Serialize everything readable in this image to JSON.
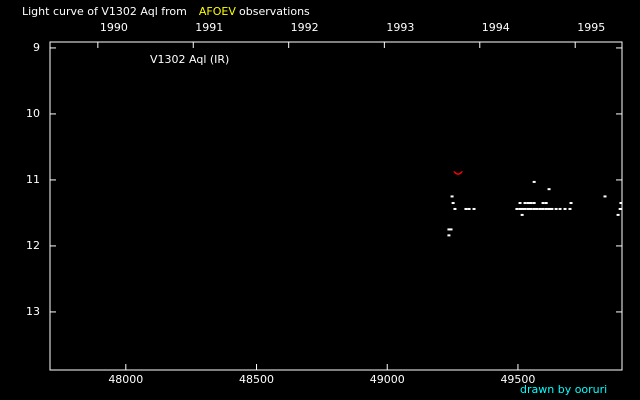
{
  "chart_data": {
    "type": "scatter",
    "title": {
      "before": "Light curve of V1302 Aql from",
      "source": "AFOEV",
      "after": "observations"
    },
    "annotation": "V1302 Aql (IR)",
    "credit": "drawn by ooruri",
    "xlim": [
      47710,
      49898
    ],
    "ylim": [
      13.88,
      8.91
    ],
    "xticks": [
      48000,
      48500,
      49000,
      49500
    ],
    "yticks": [
      9,
      10,
      11,
      12,
      13
    ],
    "x2ticks": [
      {
        "value": 47893,
        "label": "1990"
      },
      {
        "value": 48258,
        "label": "1991"
      },
      {
        "value": 48623,
        "label": "1992"
      },
      {
        "value": 48989,
        "label": "1993"
      },
      {
        "value": 49354,
        "label": "1994"
      },
      {
        "value": 49719,
        "label": "1995"
      }
    ],
    "series": [
      {
        "color": "#ffffff",
        "x": [
          49236,
          49244,
          49236,
          49248,
          49252,
          49259,
          49301,
          49313,
          49332,
          49496,
          49508,
          49508,
          49516,
          49516,
          49527,
          49527,
          49539,
          49539,
          49550,
          49550,
          49562,
          49562,
          49562,
          49573,
          49585,
          49596,
          49596,
          49608,
          49608,
          49619,
          49619,
          49630,
          49646,
          49661,
          49680,
          49699,
          49703,
          49833,
          49883,
          49891,
          49894
        ],
        "values": [
          11.75,
          11.75,
          11.84,
          11.25,
          11.35,
          11.44,
          11.44,
          11.44,
          11.44,
          11.44,
          11.44,
          11.35,
          11.53,
          11.44,
          11.35,
          11.44,
          11.44,
          11.35,
          11.35,
          11.44,
          11.03,
          11.44,
          11.35,
          11.44,
          11.44,
          11.44,
          11.35,
          11.35,
          11.44,
          11.44,
          11.14,
          11.44,
          11.44,
          11.44,
          11.44,
          11.44,
          11.35,
          11.25,
          11.53,
          11.44,
          11.35
        ]
      },
      {
        "color": "#ff0000",
        "x": [
          49271
        ],
        "values": [
          10.9
        ]
      }
    ]
  }
}
